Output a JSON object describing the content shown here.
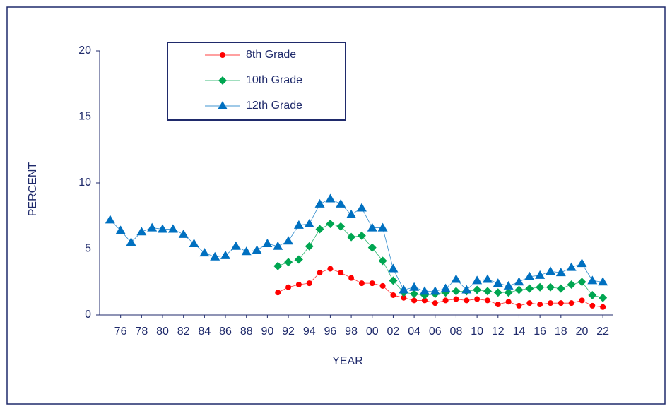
{
  "chart_data": {
    "type": "line",
    "xlabel": "YEAR",
    "ylabel": "PERCENT",
    "x": [
      1975,
      1976,
      1977,
      1978,
      1979,
      1980,
      1981,
      1982,
      1983,
      1984,
      1985,
      1986,
      1987,
      1988,
      1989,
      1990,
      1991,
      1992,
      1993,
      1994,
      1995,
      1996,
      1997,
      1998,
      1999,
      2000,
      2001,
      2002,
      2003,
      2004,
      2005,
      2006,
      2007,
      2008,
      2009,
      2010,
      2011,
      2012,
      2013,
      2014,
      2015,
      2016,
      2017,
      2018,
      2019,
      2020,
      2021,
      2022
    ],
    "series": [
      {
        "name": "8th Grade",
        "color": "#ff0000",
        "marker": "circle",
        "values": [
          null,
          null,
          null,
          null,
          null,
          null,
          null,
          null,
          null,
          null,
          null,
          null,
          null,
          null,
          null,
          null,
          1.7,
          2.1,
          2.3,
          2.4,
          3.2,
          3.5,
          3.2,
          2.8,
          2.4,
          2.4,
          2.2,
          1.5,
          1.3,
          1.1,
          1.1,
          0.9,
          1.1,
          1.2,
          1.1,
          1.2,
          1.1,
          0.8,
          1.0,
          0.7,
          0.9,
          0.8,
          0.9,
          0.9,
          0.9,
          1.1,
          0.7,
          0.6
        ]
      },
      {
        "name": "10th Grade",
        "color": "#00a651",
        "marker": "diamond",
        "values": [
          null,
          null,
          null,
          null,
          null,
          null,
          null,
          null,
          null,
          null,
          null,
          null,
          null,
          null,
          null,
          null,
          3.7,
          4.0,
          4.2,
          5.2,
          6.5,
          6.9,
          6.7,
          5.9,
          6.0,
          5.1,
          4.1,
          2.6,
          1.7,
          1.6,
          1.5,
          1.6,
          1.7,
          1.8,
          1.8,
          1.9,
          1.8,
          1.7,
          1.7,
          1.9,
          2.0,
          2.1,
          2.1,
          2.0,
          2.3,
          2.5,
          1.5,
          1.3
        ]
      },
      {
        "name": "12th Grade",
        "color": "#0070c0",
        "marker": "triangle",
        "values": [
          7.2,
          6.4,
          5.5,
          6.3,
          6.6,
          6.5,
          6.5,
          6.1,
          5.4,
          4.7,
          4.4,
          4.5,
          5.2,
          4.8,
          4.9,
          5.4,
          5.2,
          5.6,
          6.8,
          6.9,
          8.4,
          8.8,
          8.4,
          7.6,
          8.1,
          6.6,
          6.6,
          3.5,
          1.9,
          2.1,
          1.8,
          1.8,
          2.0,
          2.7,
          1.9,
          2.6,
          2.7,
          2.4,
          2.2,
          2.5,
          2.9,
          3.0,
          3.3,
          3.2,
          3.6,
          3.9,
          2.6,
          2.5
        ]
      }
    ],
    "xlim": [
      1974,
      2023
    ],
    "xticks": [
      {
        "value": 1976,
        "label": "76"
      },
      {
        "value": 1978,
        "label": "78"
      },
      {
        "value": 1980,
        "label": "80"
      },
      {
        "value": 1982,
        "label": "82"
      },
      {
        "value": 1984,
        "label": "84"
      },
      {
        "value": 1986,
        "label": "86"
      },
      {
        "value": 1988,
        "label": "88"
      },
      {
        "value": 1990,
        "label": "90"
      },
      {
        "value": 1992,
        "label": "92"
      },
      {
        "value": 1994,
        "label": "94"
      },
      {
        "value": 1996,
        "label": "96"
      },
      {
        "value": 1998,
        "label": "98"
      },
      {
        "value": 2000,
        "label": "00"
      },
      {
        "value": 2002,
        "label": "02"
      },
      {
        "value": 2004,
        "label": "04"
      },
      {
        "value": 2006,
        "label": "06"
      },
      {
        "value": 2008,
        "label": "08"
      },
      {
        "value": 2010,
        "label": "10"
      },
      {
        "value": 2012,
        "label": "12"
      },
      {
        "value": 2014,
        "label": "14"
      },
      {
        "value": 2016,
        "label": "16"
      },
      {
        "value": 2018,
        "label": "18"
      },
      {
        "value": 2020,
        "label": "20"
      },
      {
        "value": 2022,
        "label": "22"
      }
    ],
    "ylim": [
      0,
      20
    ],
    "yticks": [
      0,
      5,
      10,
      15,
      20
    ],
    "grid": false,
    "legend": "upper left"
  }
}
